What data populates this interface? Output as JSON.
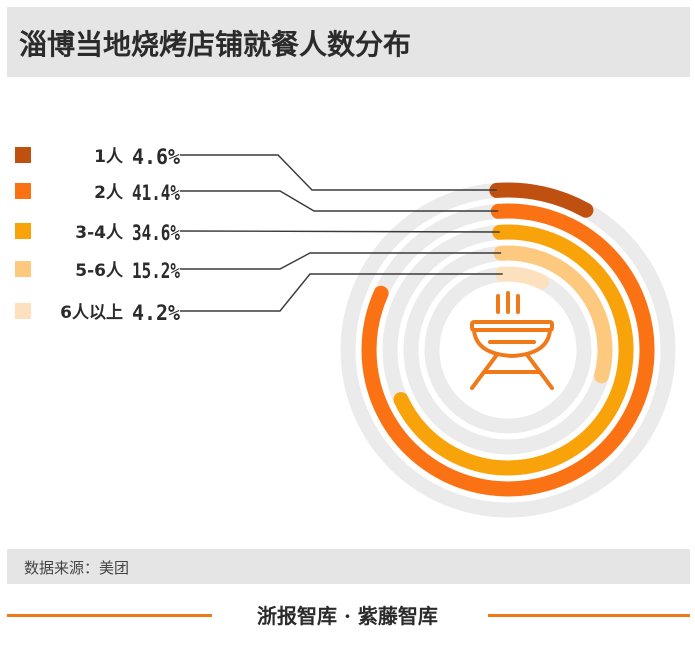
{
  "header": {
    "title": "淄博当地烧烤店铺就餐人数分布"
  },
  "source": {
    "text": "数据来源：美团"
  },
  "footer": {
    "brand": "浙报智库 · 紫藤智库"
  },
  "icon": {
    "name": "grill-icon"
  },
  "chart_data": {
    "type": "radial-bar",
    "title": "淄博当地烧烤店铺就餐人数分布",
    "categories": [
      "1人",
      "2人",
      "3-4人",
      "5-6人",
      "6人以上"
    ],
    "values": [
      4.6,
      41.4,
      34.6,
      15.2,
      4.2
    ],
    "labels": [
      "4.6%",
      "41.4%",
      "34.6%",
      "15.2%",
      "4.2%"
    ],
    "unit": "%",
    "colors": [
      "#c0500f",
      "#fa7214",
      "#f9a30b",
      "#fcc97e",
      "#fde0be"
    ],
    "track_color": "#ebebeb",
    "legend_position": "left"
  }
}
